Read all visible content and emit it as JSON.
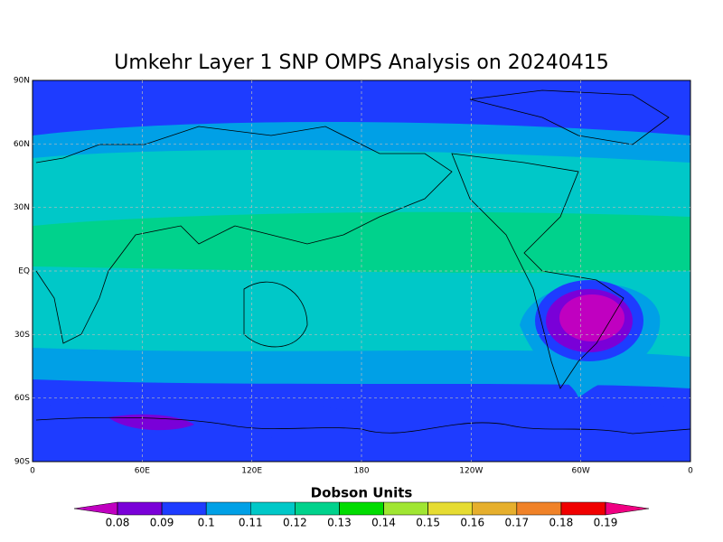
{
  "title": "Umkehr Layer 1 SNP OMPS Analysis on 20240415",
  "map": {
    "lat_labels": [
      "90N",
      "60N",
      "30N",
      "EQ",
      "30S",
      "60S",
      "90S"
    ],
    "lon_labels": [
      "0",
      "60E",
      "120E",
      "180",
      "120W",
      "60W",
      "0"
    ]
  },
  "colorbar": {
    "label": "Dobson Units",
    "ticks": [
      0.08,
      0.09,
      0.1,
      0.11,
      0.12,
      0.13,
      0.14,
      0.15,
      0.16,
      0.17,
      0.18,
      0.19
    ],
    "colors": [
      "#c000c0",
      "#7a00d8",
      "#1e3cff",
      "#00a0e6",
      "#00c8c8",
      "#00d28c",
      "#00dc00",
      "#a0e632",
      "#e6dc32",
      "#e6af2d",
      "#f08228",
      "#f00000",
      "#f00082"
    ]
  }
}
